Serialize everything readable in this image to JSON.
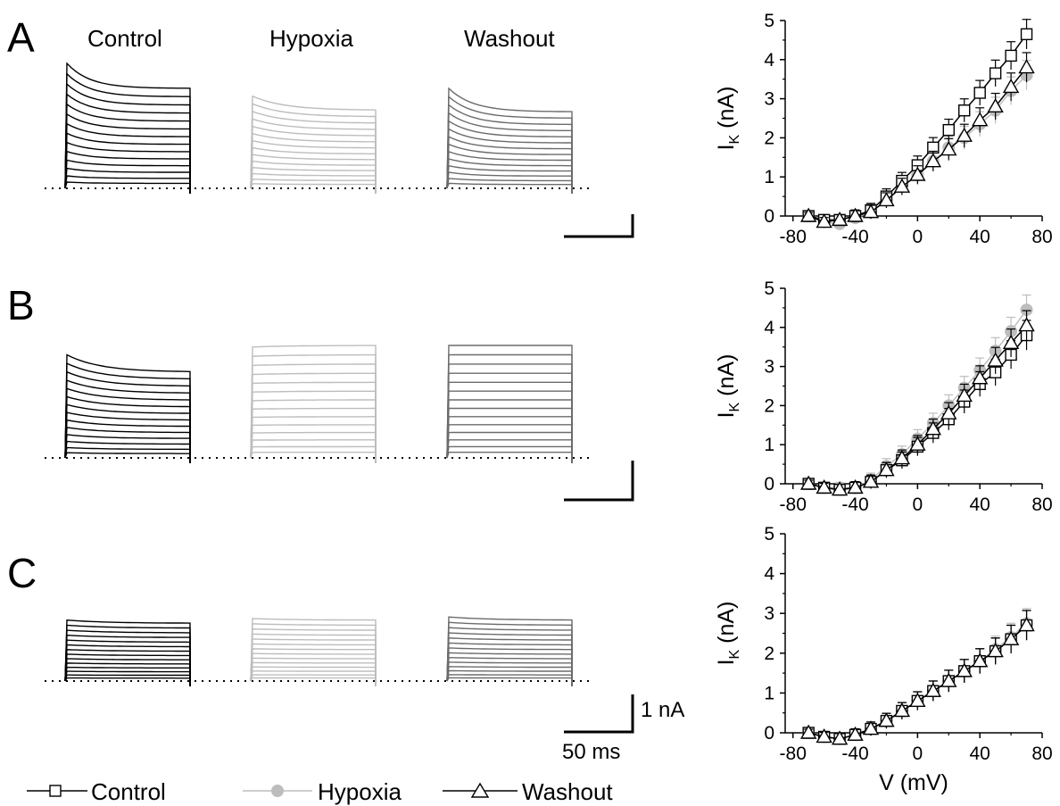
{
  "figure": {
    "panel_letters": [
      "A",
      "B",
      "C"
    ],
    "conditions": [
      "Control",
      "Hypoxia",
      "Washout"
    ],
    "scale_bar": {
      "current": "1 nA",
      "time": "50 ms"
    },
    "legend": [
      {
        "label": "Control",
        "marker": "open-square",
        "color": "#000000"
      },
      {
        "label": "Hypoxia",
        "marker": "filled-circle",
        "color": "#bdbdbd"
      },
      {
        "label": "Washout",
        "marker": "open-triangle",
        "color": "#000000"
      }
    ],
    "trace_colors": {
      "Control": "#000000",
      "Hypoxia": "#bdbdbd",
      "Washout": "#6b6b6b"
    },
    "traces": [
      {
        "panel": "A",
        "peak_nA": [
          4.0,
          2.95,
          3.2
        ],
        "steady_nA": [
          3.2,
          2.5,
          2.45
        ],
        "decay": [
          0.8,
          0.45,
          0.75
        ]
      },
      {
        "panel": "B",
        "peak_nA": [
          3.3,
          3.55,
          3.6
        ],
        "steady_nA": [
          2.75,
          3.6,
          3.6
        ],
        "decay": [
          0.4,
          0.1,
          0.1
        ]
      },
      {
        "panel": "C",
        "peak_nA": [
          1.95,
          2.0,
          2.05
        ],
        "steady_nA": [
          1.85,
          1.95,
          1.95
        ],
        "decay": [
          0.15,
          0.1,
          0.1
        ]
      }
    ]
  },
  "chart_data": [
    {
      "type": "line",
      "panel": "A",
      "xlabel": "",
      "ylabel": "IK (nA)",
      "xlim": [
        -85,
        80
      ],
      "ylim": [
        0,
        5
      ],
      "xticks": [
        -80,
        -40,
        0,
        40,
        80
      ],
      "yticks": [
        0,
        1,
        2,
        3,
        4,
        5
      ],
      "x": [
        -70,
        -60,
        -50,
        -40,
        -30,
        -20,
        -10,
        0,
        10,
        20,
        30,
        40,
        50,
        60,
        70
      ],
      "series": [
        {
          "name": "Control",
          "values": [
            0.0,
            -0.1,
            -0.1,
            0.0,
            0.15,
            0.5,
            0.9,
            1.3,
            1.75,
            2.2,
            2.7,
            3.15,
            3.65,
            4.1,
            4.65
          ]
        },
        {
          "name": "Hypoxia",
          "values": [
            0.0,
            -0.15,
            -0.2,
            -0.05,
            0.1,
            0.4,
            0.75,
            1.05,
            1.4,
            1.75,
            2.0,
            2.35,
            2.7,
            3.2,
            3.6
          ]
        },
        {
          "name": "Washout",
          "values": [
            0.0,
            -0.15,
            -0.1,
            0.0,
            0.1,
            0.4,
            0.75,
            1.05,
            1.4,
            1.7,
            2.05,
            2.45,
            2.8,
            3.3,
            3.8
          ]
        }
      ]
    },
    {
      "type": "line",
      "panel": "B",
      "xlabel": "",
      "ylabel": "IK (nA)",
      "xlim": [
        -85,
        80
      ],
      "ylim": [
        0,
        5
      ],
      "xticks": [
        -80,
        -40,
        0,
        40,
        80
      ],
      "yticks": [
        0,
        1,
        2,
        3,
        4,
        5
      ],
      "x": [
        -70,
        -60,
        -50,
        -40,
        -30,
        -20,
        -10,
        0,
        10,
        20,
        30,
        40,
        50,
        60,
        70
      ],
      "series": [
        {
          "name": "Control",
          "values": [
            0.0,
            -0.1,
            -0.15,
            -0.1,
            0.05,
            0.35,
            0.6,
            0.95,
            1.3,
            1.65,
            2.1,
            2.55,
            2.85,
            3.3,
            3.8
          ]
        },
        {
          "name": "Hypoxia",
          "values": [
            0.0,
            -0.1,
            -0.1,
            -0.1,
            0.1,
            0.45,
            0.75,
            1.15,
            1.55,
            2.0,
            2.45,
            2.9,
            3.4,
            3.9,
            4.45
          ]
        },
        {
          "name": "Washout",
          "values": [
            0.0,
            -0.1,
            -0.15,
            -0.1,
            0.05,
            0.35,
            0.65,
            1.0,
            1.4,
            1.8,
            2.25,
            2.7,
            3.15,
            3.6,
            4.05
          ]
        }
      ]
    },
    {
      "type": "line",
      "panel": "C",
      "xlabel": "V (mV)",
      "ylabel": "IK (nA)",
      "xlim": [
        -85,
        80
      ],
      "ylim": [
        0,
        5
      ],
      "xticks": [
        -80,
        -40,
        0,
        40,
        80
      ],
      "yticks": [
        0,
        1,
        2,
        3,
        4,
        5
      ],
      "x": [
        -70,
        -60,
        -50,
        -40,
        -30,
        -20,
        -10,
        0,
        10,
        20,
        30,
        40,
        50,
        60,
        70
      ],
      "series": [
        {
          "name": "Control",
          "values": [
            0.0,
            -0.1,
            -0.15,
            -0.05,
            0.1,
            0.3,
            0.55,
            0.8,
            1.05,
            1.3,
            1.55,
            1.8,
            2.05,
            2.35,
            2.7
          ]
        },
        {
          "name": "Hypoxia",
          "values": [
            0.0,
            -0.1,
            -0.15,
            -0.05,
            0.1,
            0.3,
            0.55,
            0.8,
            1.05,
            1.3,
            1.55,
            1.8,
            2.1,
            2.4,
            2.75
          ]
        },
        {
          "name": "Washout",
          "values": [
            0.0,
            -0.1,
            -0.15,
            -0.05,
            0.1,
            0.3,
            0.55,
            0.8,
            1.05,
            1.3,
            1.55,
            1.8,
            2.05,
            2.35,
            2.7
          ]
        }
      ]
    }
  ]
}
